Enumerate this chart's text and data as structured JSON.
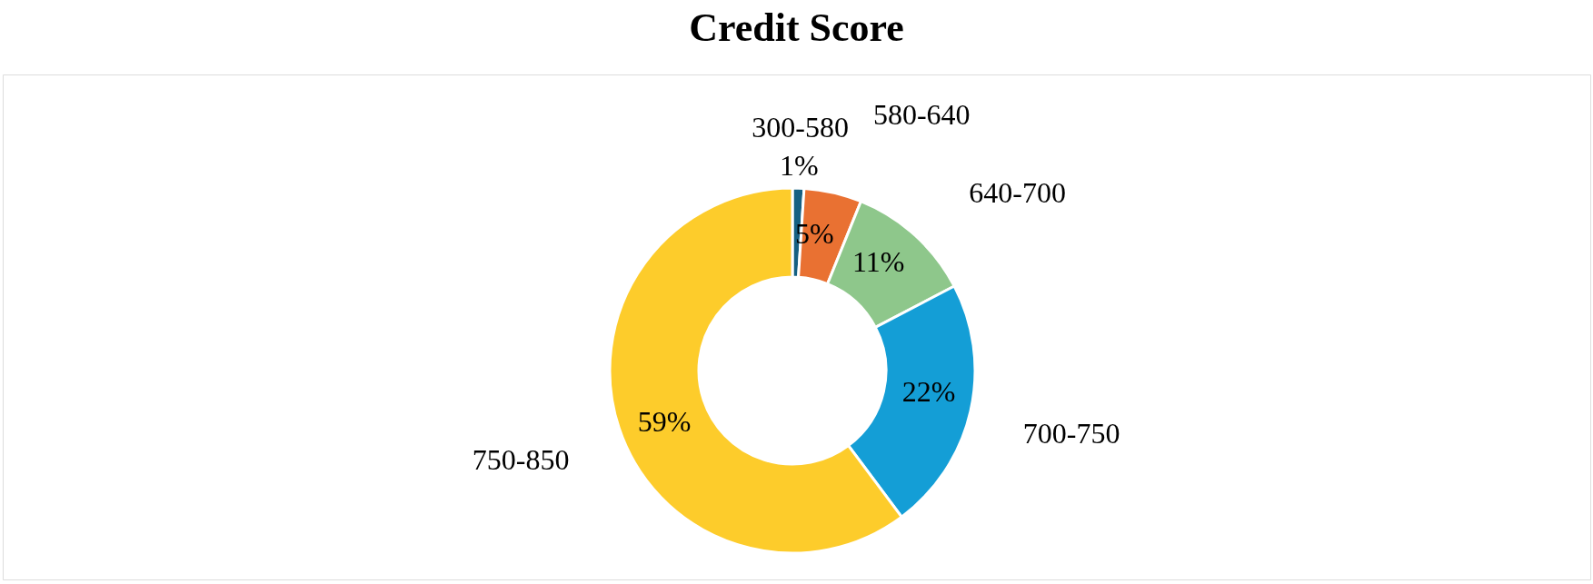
{
  "chart_data": {
    "type": "donut",
    "title": "Credit Score",
    "categories": [
      "300-580",
      "580-640",
      "640-700",
      "700-750",
      "750-850"
    ],
    "values": [
      1,
      5,
      11,
      22,
      59
    ],
    "value_labels": [
      "1%",
      "5%",
      "11%",
      "22%",
      "59%"
    ],
    "colors": [
      "#156082",
      "#e97132",
      "#8ec78b",
      "#149ed6",
      "#fdcc2b"
    ]
  }
}
